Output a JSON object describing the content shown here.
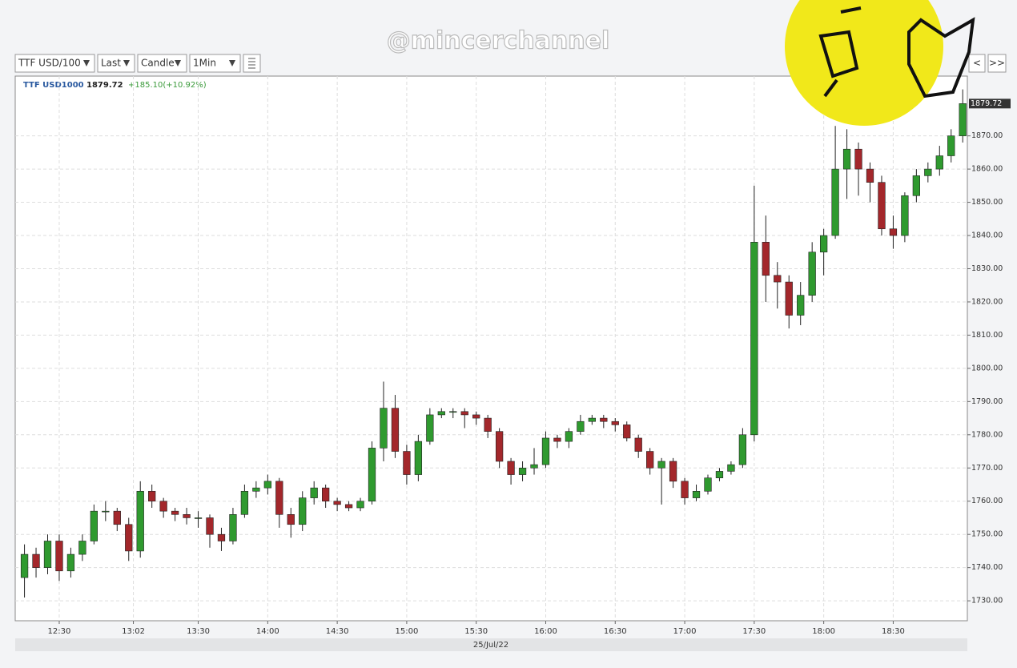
{
  "toolbar": {
    "symbol": "TTF USD/100",
    "price": "Last",
    "style": "Candle",
    "interval": "1Min",
    "prev": "<",
    "next": ">>"
  },
  "watermark": "@mincerchannel",
  "chart_data": {
    "type": "candlestick",
    "symbol": "TTF USD1000",
    "last": 1879.72,
    "change": "+185.10(+10.92%)",
    "date": "25/Jul/22",
    "up_color": "#2f9a2f",
    "down_color": "#a3272b",
    "x": [
      735,
      740,
      745,
      750,
      755,
      760,
      765,
      770,
      775,
      780,
      785,
      790,
      795,
      800,
      805,
      810,
      815,
      820,
      825,
      830,
      835,
      840,
      845,
      850,
      855,
      860,
      865,
      870,
      875,
      880,
      885,
      890,
      895,
      900,
      905,
      910,
      915,
      920,
      925,
      930,
      935,
      940,
      945,
      950,
      955,
      960,
      965,
      970,
      975,
      980,
      985,
      990,
      995,
      1000,
      1005,
      1010,
      1015,
      1020,
      1025,
      1030,
      1035,
      1040,
      1045,
      1050,
      1055,
      1060,
      1065,
      1070,
      1075,
      1080,
      1085,
      1090,
      1095,
      1100,
      1105,
      1110,
      1115,
      1120,
      1125,
      1130,
      1135,
      1140
    ],
    "open": [
      1737,
      1744,
      1740,
      1748,
      1739,
      1744,
      1748,
      1757,
      1757,
      1753,
      1745,
      1763,
      1760,
      1757,
      1756,
      1755,
      1755,
      1750,
      1748,
      1756,
      1763,
      1764,
      1766,
      1756,
      1753,
      1761,
      1764,
      1760,
      1759,
      1758,
      1760,
      1776,
      1788,
      1775,
      1768,
      1778,
      1786,
      1787,
      1787,
      1786,
      1785,
      1781,
      1772,
      1768,
      1770,
      1771,
      1779,
      1778,
      1781,
      1784,
      1785,
      1784,
      1783,
      1779,
      1775,
      1770,
      1772,
      1766,
      1761,
      1763,
      1767,
      1769,
      1771,
      1780,
      1838,
      1828,
      1826,
      1816,
      1822,
      1835,
      1840,
      1860,
      1866,
      1860,
      1856,
      1842,
      1840,
      1852,
      1858,
      1860,
      1864,
      1870
    ],
    "high": [
      1747,
      1746,
      1750,
      1750,
      1746,
      1750,
      1759,
      1760,
      1758,
      1755,
      1766,
      1765,
      1761,
      1758,
      1758,
      1757,
      1756,
      1752,
      1758,
      1765,
      1766,
      1768,
      1767,
      1758,
      1763,
      1766,
      1765,
      1761,
      1760,
      1761,
      1778,
      1796,
      1792,
      1777,
      1780,
      1788,
      1788,
      1788,
      1788,
      1787,
      1786,
      1782,
      1773,
      1772,
      1776,
      1781,
      1780,
      1782,
      1786,
      1786,
      1786,
      1785,
      1784,
      1780,
      1776,
      1773,
      1773,
      1767,
      1765,
      1768,
      1770,
      1772,
      1782,
      1855,
      1846,
      1832,
      1828,
      1826,
      1838,
      1842,
      1873,
      1872,
      1868,
      1862,
      1858,
      1846,
      1853,
      1860,
      1862,
      1867,
      1872,
      1884
    ],
    "low": [
      1731,
      1737,
      1738,
      1736,
      1737,
      1742,
      1747,
      1754,
      1751,
      1742,
      1743,
      1758,
      1755,
      1754,
      1753,
      1752,
      1746,
      1745,
      1747,
      1755,
      1761,
      1762,
      1752,
      1749,
      1751,
      1759,
      1758,
      1757,
      1757,
      1757,
      1759,
      1772,
      1773,
      1765,
      1766,
      1777,
      1785,
      1785,
      1782,
      1783,
      1779,
      1770,
      1765,
      1766,
      1768,
      1770,
      1776,
      1776,
      1780,
      1783,
      1782,
      1781,
      1778,
      1773,
      1768,
      1759,
      1764,
      1759,
      1760,
      1762,
      1766,
      1768,
      1770,
      1778,
      1820,
      1818,
      1812,
      1813,
      1820,
      1828,
      1839,
      1851,
      1852,
      1850,
      1840,
      1836,
      1838,
      1850,
      1856,
      1858,
      1862,
      1868
    ],
    "close": [
      1744,
      1740,
      1748,
      1739,
      1744,
      1748,
      1757,
      1757,
      1753,
      1745,
      1763,
      1760,
      1757,
      1756,
      1755,
      1755,
      1750,
      1748,
      1756,
      1763,
      1764,
      1766,
      1756,
      1753,
      1761,
      1764,
      1760,
      1759,
      1758,
      1760,
      1776,
      1788,
      1775,
      1768,
      1778,
      1786,
      1787,
      1787,
      1786,
      1785,
      1781,
      1772,
      1768,
      1770,
      1771,
      1779,
      1778,
      1781,
      1784,
      1785,
      1784,
      1783,
      1779,
      1775,
      1770,
      1772,
      1766,
      1761,
      1763,
      1767,
      1769,
      1771,
      1780,
      1838,
      1828,
      1826,
      1816,
      1822,
      1835,
      1840,
      1860,
      1866,
      1860,
      1856,
      1842,
      1840,
      1852,
      1858,
      1860,
      1864,
      1870,
      1879.72
    ],
    "xlim": [
      731,
      1142
    ],
    "xticks": [
      {
        "value": 750,
        "label": "12:30"
      },
      {
        "value": 782,
        "label": "13:02"
      },
      {
        "value": 810,
        "label": "13:30"
      },
      {
        "value": 840,
        "label": "14:00"
      },
      {
        "value": 870,
        "label": "14:30"
      },
      {
        "value": 900,
        "label": "15:00"
      },
      {
        "value": 930,
        "label": "15:30"
      },
      {
        "value": 960,
        "label": "16:00"
      },
      {
        "value": 990,
        "label": "16:30"
      },
      {
        "value": 1020,
        "label": "17:00"
      },
      {
        "value": 1050,
        "label": "17:30"
      },
      {
        "value": 1080,
        "label": "18:00"
      },
      {
        "value": 1110,
        "label": "18:30"
      }
    ],
    "ylim": [
      1724,
      1888
    ],
    "yticks": [
      {
        "value": 1730,
        "label": "1730.00"
      },
      {
        "value": 1740,
        "label": "1740.00"
      },
      {
        "value": 1750,
        "label": "1750.00"
      },
      {
        "value": 1760,
        "label": "1760.00"
      },
      {
        "value": 1770,
        "label": "1770.00"
      },
      {
        "value": 1780,
        "label": "1780.00"
      },
      {
        "value": 1790,
        "label": "1790.00"
      },
      {
        "value": 1800,
        "label": "1800.00"
      },
      {
        "value": 1810,
        "label": "1810.00"
      },
      {
        "value": 1820,
        "label": "1820.00"
      },
      {
        "value": 1830,
        "label": "1830.00"
      },
      {
        "value": 1840,
        "label": "1840.00"
      },
      {
        "value": 1850,
        "label": "1850.00"
      },
      {
        "value": 1860,
        "label": "1860.00"
      },
      {
        "value": 1870,
        "label": "1870.00"
      }
    ],
    "grid": true
  }
}
